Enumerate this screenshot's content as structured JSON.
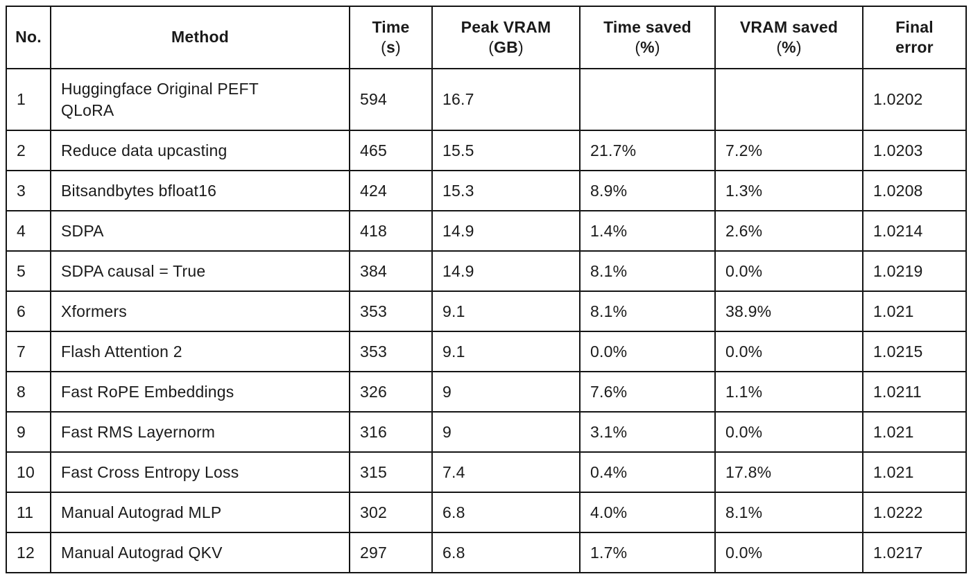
{
  "table": {
    "paren_open": "(",
    "paren_close": ")",
    "columns": [
      {
        "field": "no",
        "label": "No.",
        "line2": null,
        "line2_parens": false
      },
      {
        "field": "method",
        "label": "Method",
        "line2": null,
        "line2_parens": false
      },
      {
        "field": "time",
        "label": "Time",
        "line2": "s",
        "line2_parens": true
      },
      {
        "field": "vram",
        "label": "Peak VRAM",
        "line2": "GB",
        "line2_parens": true
      },
      {
        "field": "time_saved",
        "label": "Time saved",
        "line2": "%",
        "line2_parens": true
      },
      {
        "field": "vram_saved",
        "label": "VRAM saved",
        "line2": "%",
        "line2_parens": true
      },
      {
        "field": "final_error",
        "label": "Final",
        "line2": "error",
        "line2_parens": false
      }
    ],
    "rows": [
      {
        "no": "1",
        "method": "Huggingface Original PEFT\nQLoRA",
        "time": "594",
        "vram": "16.7",
        "time_saved": "",
        "vram_saved": "",
        "final_error": "1.0202"
      },
      {
        "no": "2",
        "method": "Reduce data upcasting",
        "time": "465",
        "vram": "15.5",
        "time_saved": "21.7%",
        "vram_saved": "7.2%",
        "final_error": "1.0203"
      },
      {
        "no": "3",
        "method": "Bitsandbytes bfloat16",
        "time": "424",
        "vram": "15.3",
        "time_saved": "8.9%",
        "vram_saved": "1.3%",
        "final_error": "1.0208"
      },
      {
        "no": "4",
        "method": "SDPA",
        "time": "418",
        "vram": "14.9",
        "time_saved": "1.4%",
        "vram_saved": "2.6%",
        "final_error": "1.0214"
      },
      {
        "no": "5",
        "method": "SDPA causal = True",
        "time": "384",
        "vram": "14.9",
        "time_saved": "8.1%",
        "vram_saved": "0.0%",
        "final_error": "1.0219"
      },
      {
        "no": "6",
        "method": "Xformers",
        "time": "353",
        "vram": "9.1",
        "time_saved": "8.1%",
        "vram_saved": "38.9%",
        "final_error": "1.021"
      },
      {
        "no": "7",
        "method": "Flash Attention 2",
        "time": "353",
        "vram": "9.1",
        "time_saved": "0.0%",
        "vram_saved": "0.0%",
        "final_error": "1.0215"
      },
      {
        "no": "8",
        "method": "Fast RoPE Embeddings",
        "time": "326",
        "vram": "9",
        "time_saved": "7.6%",
        "vram_saved": "1.1%",
        "final_error": "1.0211"
      },
      {
        "no": "9",
        "method": "Fast RMS Layernorm",
        "time": "316",
        "vram": "9",
        "time_saved": "3.1%",
        "vram_saved": "0.0%",
        "final_error": "1.021"
      },
      {
        "no": "10",
        "method": "Fast Cross Entropy Loss",
        "time": "315",
        "vram": "7.4",
        "time_saved": "0.4%",
        "vram_saved": "17.8%",
        "final_error": "1.021"
      },
      {
        "no": "11",
        "method": "Manual Autograd MLP",
        "time": "302",
        "vram": "6.8",
        "time_saved": "4.0%",
        "vram_saved": "8.1%",
        "final_error": "1.0222"
      },
      {
        "no": "12",
        "method": "Manual Autograd QKV",
        "time": "297",
        "vram": "6.8",
        "time_saved": "1.7%",
        "vram_saved": "0.0%",
        "final_error": "1.0217"
      }
    ],
    "colors": {
      "border": "#141414",
      "text": "#1a1a1a",
      "background": "#ffffff"
    }
  }
}
